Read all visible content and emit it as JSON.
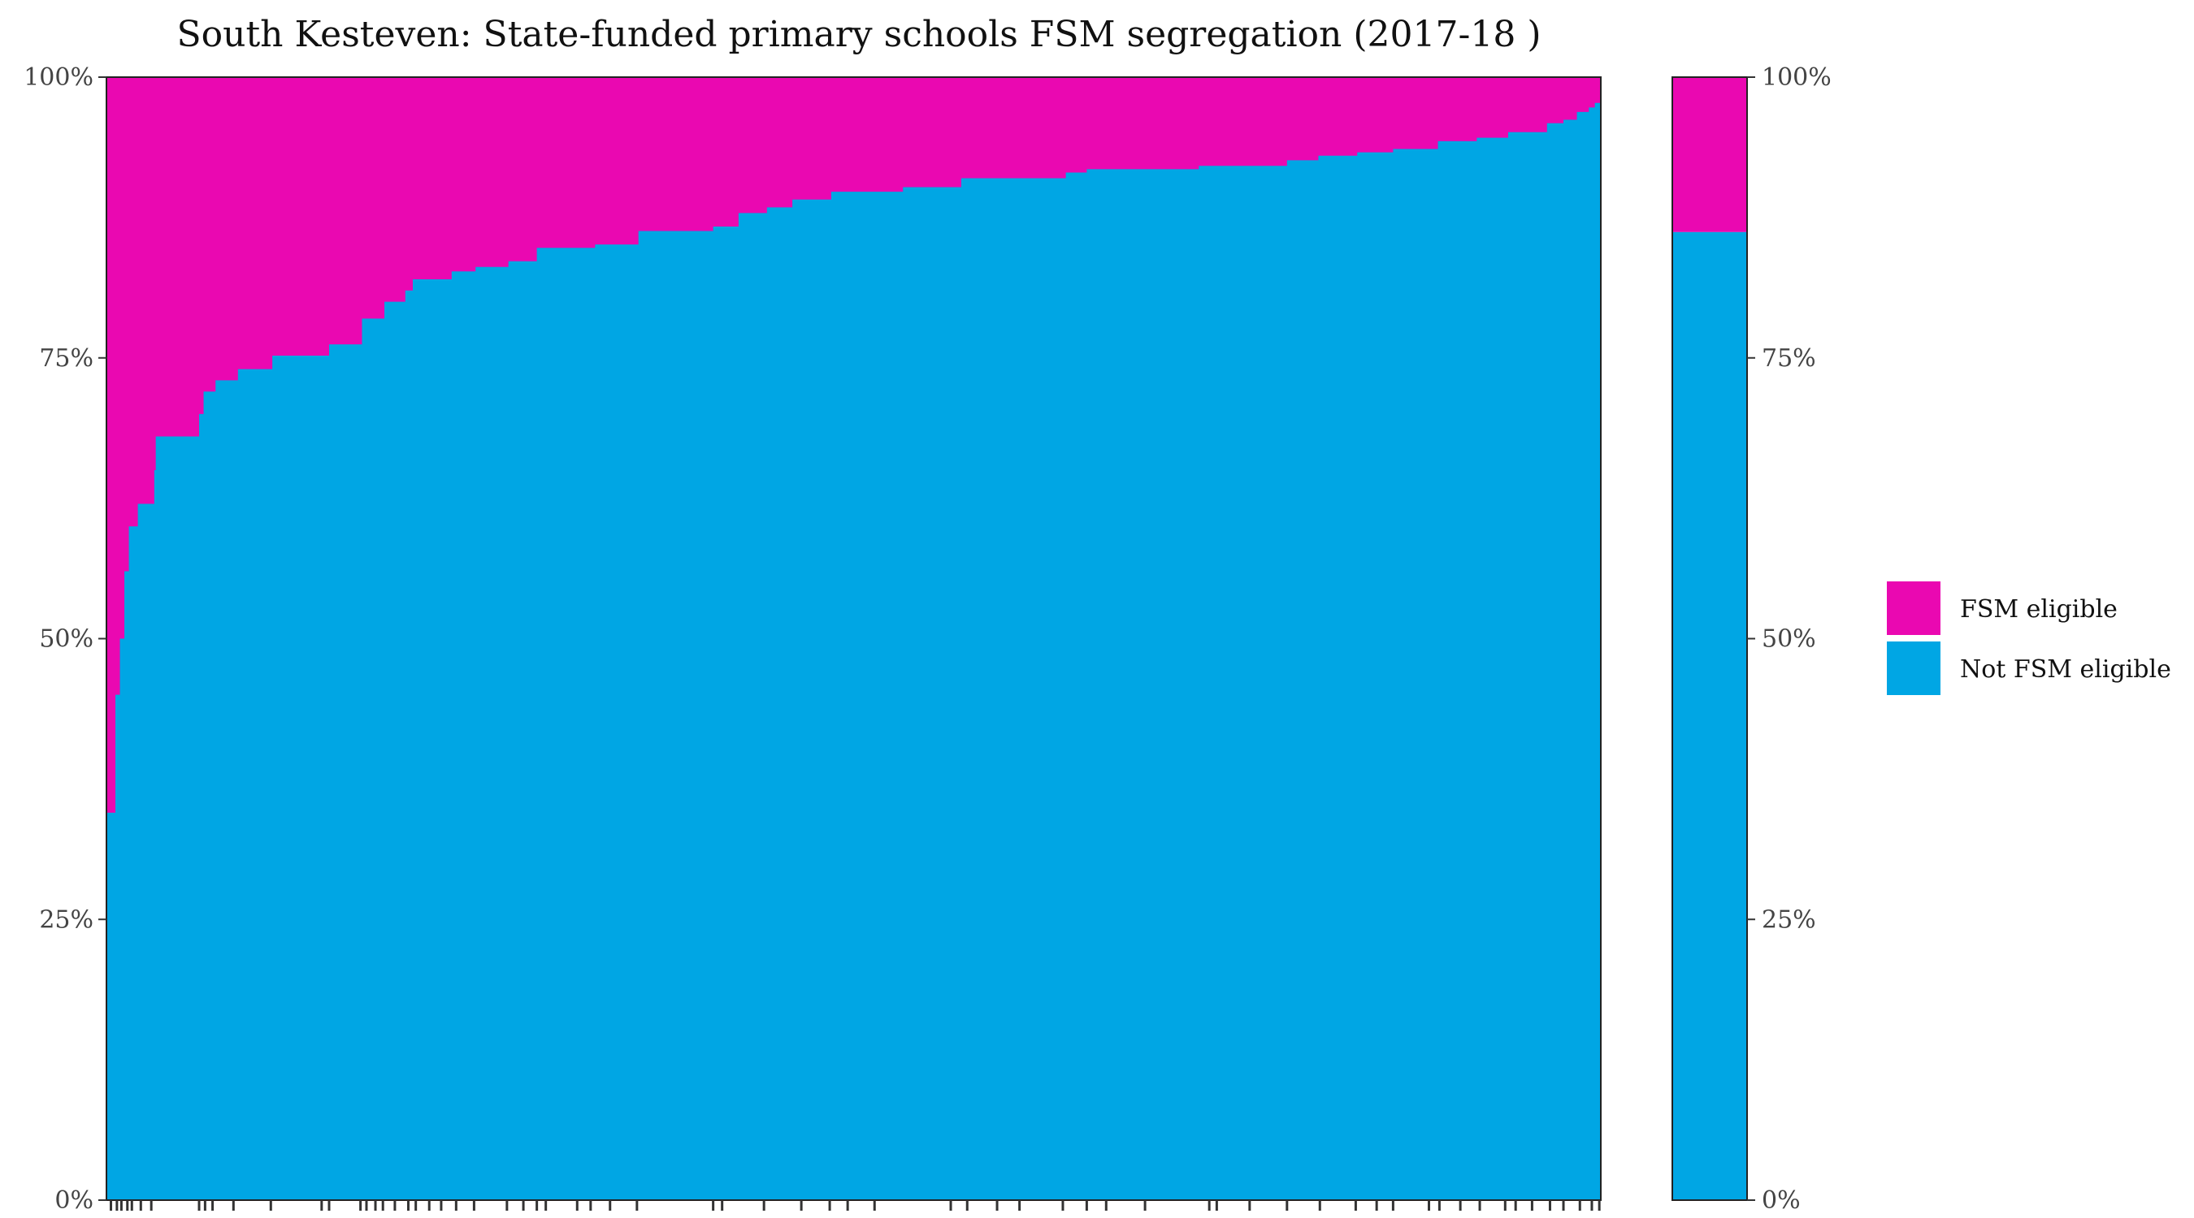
{
  "chart_data": {
    "type": "area",
    "title": "South Kesteven: State-funded primary schools FSM segregation (2017-18 )",
    "xlabel": "",
    "ylabel": "",
    "ylim": [
      0,
      100
    ],
    "y_ticks": [
      "0%",
      "25%",
      "50%",
      "75%",
      "100%"
    ],
    "grid": false,
    "legend_position": "right",
    "colors": {
      "fsm": "#EA08B1",
      "not_fsm": "#00A6E4"
    },
    "series": [
      {
        "name": "FSM eligible",
        "color": "#EA08B1"
      },
      {
        "name": "Not FSM eligible",
        "color": "#00A6E4"
      }
    ],
    "x_range": [
      0,
      100
    ],
    "schools_not_fsm_share_percent": [
      [
        0,
        34.5
      ],
      [
        0.6,
        45
      ],
      [
        0.9,
        50
      ],
      [
        1.2,
        56
      ],
      [
        1.5,
        60
      ],
      [
        2.1,
        62
      ],
      [
        3.2,
        65
      ],
      [
        3.3,
        68
      ],
      [
        6.2,
        70
      ],
      [
        6.5,
        72
      ],
      [
        7.3,
        73
      ],
      [
        8.8,
        74
      ],
      [
        11.1,
        75.2
      ],
      [
        14.9,
        76.2
      ],
      [
        17.1,
        78.5
      ],
      [
        18.6,
        80
      ],
      [
        20.0,
        81
      ],
      [
        20.5,
        82
      ],
      [
        23.1,
        82.7
      ],
      [
        24.7,
        83.1
      ],
      [
        26.9,
        83.6
      ],
      [
        28.8,
        84.8
      ],
      [
        32.7,
        85.1
      ],
      [
        35.6,
        86.3
      ],
      [
        40.6,
        86.7
      ],
      [
        42.3,
        87.9
      ],
      [
        44.2,
        88.4
      ],
      [
        45.9,
        89.1
      ],
      [
        48.5,
        89.8
      ],
      [
        53.3,
        90.2
      ],
      [
        57.2,
        91.0
      ],
      [
        64.2,
        91.5
      ],
      [
        65.6,
        91.8
      ],
      [
        73.1,
        92.1
      ],
      [
        79.0,
        92.6
      ],
      [
        81.1,
        93.0
      ],
      [
        83.7,
        93.3
      ],
      [
        86.1,
        93.6
      ],
      [
        89.1,
        94.3
      ],
      [
        91.7,
        94.6
      ],
      [
        93.8,
        95.1
      ],
      [
        96.4,
        95.9
      ],
      [
        97.5,
        96.2
      ],
      [
        98.4,
        96.9
      ],
      [
        99.2,
        97.3
      ],
      [
        99.6,
        97.7
      ]
    ],
    "overall_bar": {
      "not_fsm_percent": 86.2,
      "fsm_percent": 13.8
    },
    "rug_ticks_x": [
      0.3,
      0.7,
      1.0,
      1.4,
      1.7,
      2.3,
      3.0,
      6.2,
      6.6,
      7.1,
      8.5,
      11.0,
      14.4,
      14.9,
      17.0,
      17.4,
      18.0,
      18.5,
      19.3,
      20.2,
      20.7,
      21.6,
      22.4,
      23.4,
      24.6,
      26.8,
      27.9,
      28.8,
      29.4,
      31.5,
      32.4,
      33.7,
      35.5,
      40.6,
      41.2,
      44.0,
      46.5,
      48.4,
      49.6,
      51.4,
      56.5,
      57.6,
      59.6,
      61.1,
      64.0,
      65.6,
      66.9,
      69.5,
      73.8,
      74.3,
      76.5,
      79.0,
      81.2,
      83.6,
      85.0,
      86.1,
      88.5,
      89.2,
      90.6,
      91.9,
      93.6,
      94.3,
      95.4,
      96.6,
      97.5,
      98.6,
      99.4,
      99.9
    ]
  }
}
